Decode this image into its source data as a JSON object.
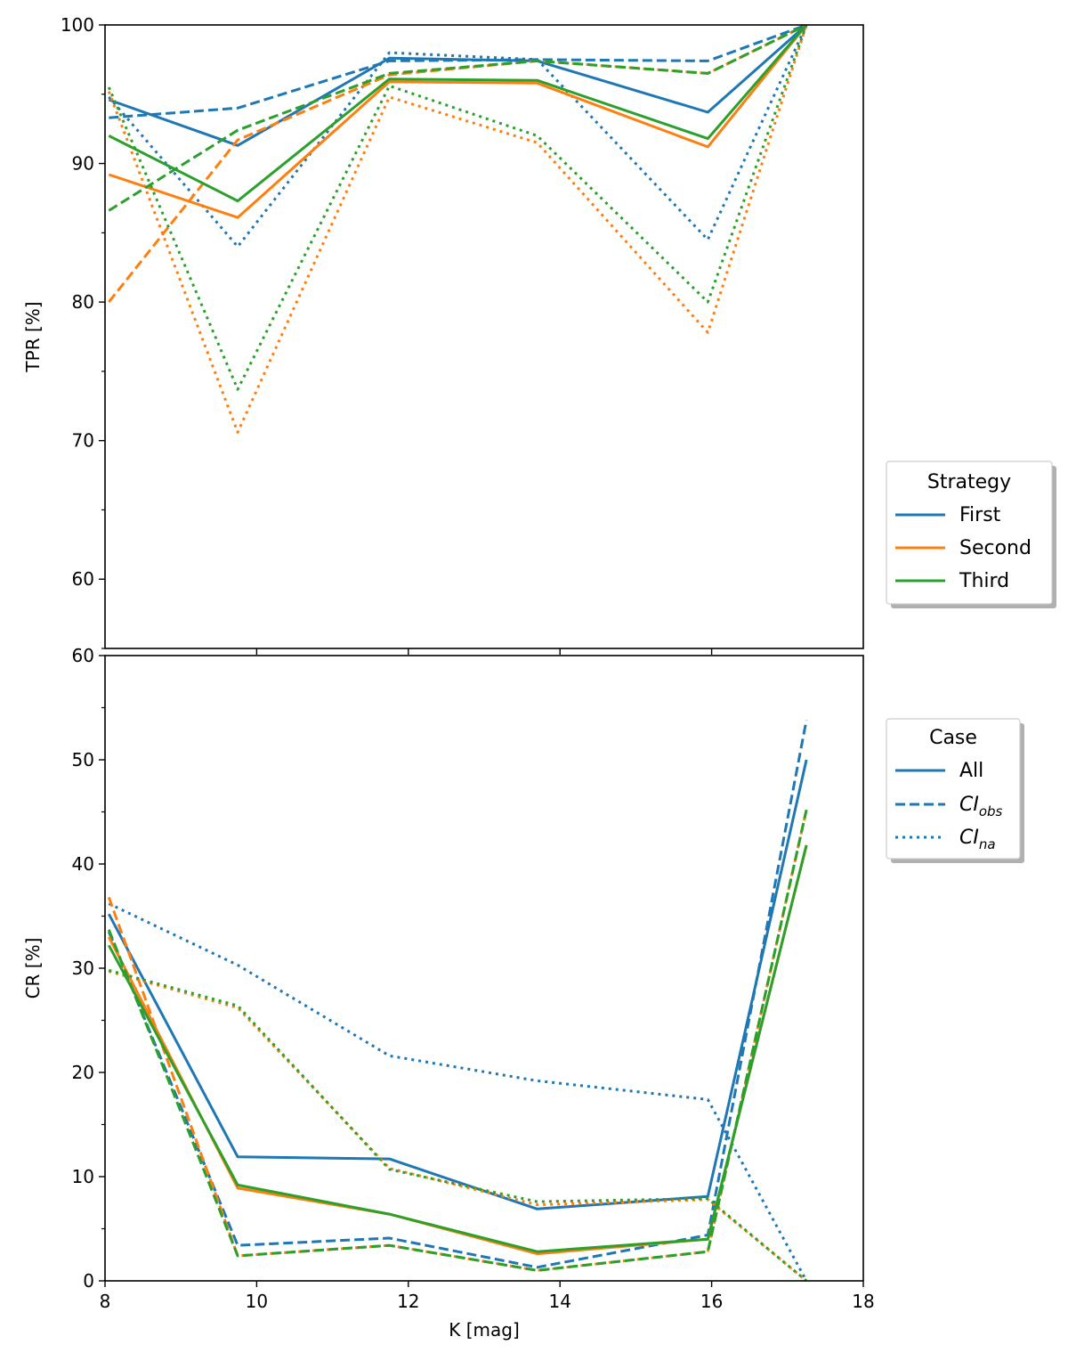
{
  "colors": {
    "first": "#1f77b4",
    "second": "#ff7f0e",
    "third": "#2ca02c"
  },
  "chart_data": [
    {
      "type": "line",
      "ylabel": "TPR [%]",
      "xlabel": "",
      "xlim": [
        8,
        18
      ],
      "ylim": [
        55,
        100
      ],
      "yticks": [
        60,
        70,
        80,
        90,
        100
      ],
      "xticks": [
        10,
        12,
        14,
        16
      ],
      "x": [
        8.05,
        9.75,
        11.75,
        13.7,
        15.95,
        17.25
      ],
      "grid": false,
      "legend": {
        "title": "Strategy",
        "placement": "right",
        "entries": [
          "First",
          "Second",
          "Third"
        ]
      },
      "series": [
        {
          "name": "First",
          "case": "All",
          "style": "solid",
          "values": [
            94.6,
            91.3,
            97.6,
            97.4,
            93.7,
            100
          ]
        },
        {
          "name": "First",
          "case": "CI_obs",
          "style": "dashed",
          "values": [
            93.3,
            94.0,
            97.4,
            97.5,
            97.4,
            100
          ]
        },
        {
          "name": "First",
          "case": "CI_na",
          "style": "dotted",
          "values": [
            94.8,
            84.0,
            98.0,
            97.5,
            84.5,
            100
          ]
        },
        {
          "name": "Second",
          "case": "All",
          "style": "solid",
          "values": [
            89.2,
            86.1,
            95.9,
            95.8,
            91.2,
            100
          ]
        },
        {
          "name": "Second",
          "case": "CI_obs",
          "style": "dashed",
          "values": [
            80.0,
            91.7,
            96.4,
            97.4,
            96.5,
            100
          ]
        },
        {
          "name": "Second",
          "case": "CI_na",
          "style": "dotted",
          "values": [
            95.2,
            70.6,
            94.8,
            91.5,
            77.8,
            100
          ]
        },
        {
          "name": "Third",
          "case": "All",
          "style": "solid",
          "values": [
            92.0,
            87.3,
            96.1,
            96.0,
            91.8,
            100
          ]
        },
        {
          "name": "Third",
          "case": "CI_obs",
          "style": "dashed",
          "values": [
            86.6,
            92.4,
            96.5,
            97.4,
            96.5,
            100
          ]
        },
        {
          "name": "Third",
          "case": "CI_na",
          "style": "dotted",
          "values": [
            95.5,
            73.7,
            95.6,
            92.0,
            80.0,
            100
          ]
        }
      ]
    },
    {
      "type": "line",
      "ylabel": "CR [%]",
      "xlabel": "K [mag]",
      "xlim": [
        8,
        18
      ],
      "ylim": [
        0,
        60
      ],
      "yticks": [
        0,
        10,
        20,
        30,
        40,
        50,
        60
      ],
      "xticks": [
        8,
        10,
        12,
        14,
        16,
        18
      ],
      "x": [
        8.05,
        9.75,
        11.75,
        13.7,
        15.95,
        17.25
      ],
      "grid": false,
      "legend": {
        "title": "Case",
        "placement": "right",
        "entries": [
          "All",
          "CI",
          "CI"
        ],
        "subscripts": [
          "",
          "obs",
          "na"
        ]
      },
      "series": [
        {
          "name": "First",
          "case": "All",
          "style": "solid",
          "values": [
            35.2,
            11.9,
            11.7,
            6.9,
            8.1,
            50.0
          ]
        },
        {
          "name": "First",
          "case": "CI_obs",
          "style": "dashed",
          "values": [
            33.5,
            3.4,
            4.1,
            1.3,
            4.4,
            53.8
          ]
        },
        {
          "name": "First",
          "case": "CI_na",
          "style": "dotted",
          "values": [
            36.2,
            30.3,
            21.6,
            19.2,
            17.4,
            0.0
          ]
        },
        {
          "name": "Second",
          "case": "All",
          "style": "solid",
          "values": [
            33.0,
            8.9,
            6.4,
            2.6,
            4.0,
            41.8
          ]
        },
        {
          "name": "Second",
          "case": "CI_obs",
          "style": "dashed",
          "values": [
            36.8,
            2.4,
            3.4,
            1.0,
            2.8,
            45.2
          ]
        },
        {
          "name": "Second",
          "case": "CI_na",
          "style": "dotted",
          "values": [
            29.7,
            26.2,
            10.8,
            7.3,
            7.8,
            0.0
          ]
        },
        {
          "name": "Third",
          "case": "All",
          "style": "solid",
          "values": [
            32.2,
            9.2,
            6.4,
            2.8,
            4.0,
            41.8
          ]
        },
        {
          "name": "Third",
          "case": "CI_obs",
          "style": "dashed",
          "values": [
            33.7,
            2.4,
            3.4,
            1.0,
            2.8,
            45.2
          ]
        },
        {
          "name": "Third",
          "case": "CI_na",
          "style": "dotted",
          "values": [
            29.8,
            26.4,
            10.7,
            7.6,
            7.9,
            0.0
          ]
        }
      ]
    }
  ]
}
